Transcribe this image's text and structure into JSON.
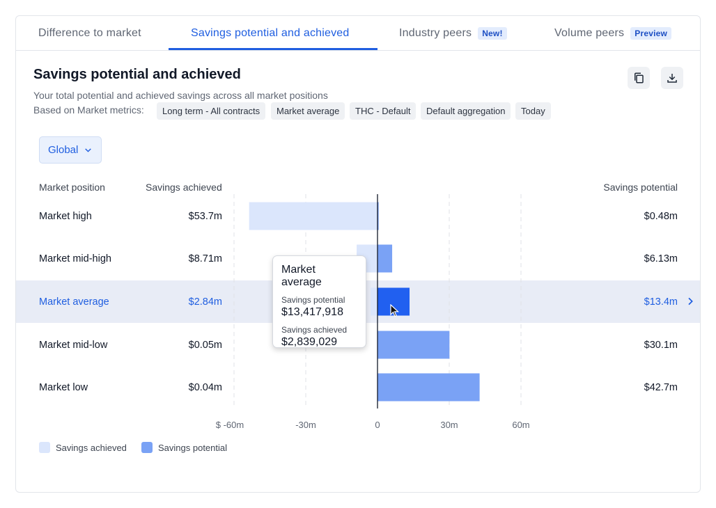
{
  "tabs": [
    {
      "label": "Difference to market",
      "badge": ""
    },
    {
      "label": "Savings potential and achieved",
      "badge": ""
    },
    {
      "label": "Industry peers",
      "badge": "New!"
    },
    {
      "label": "Volume peers",
      "badge": "Preview"
    }
  ],
  "active_tab": 1,
  "header": {
    "title": "Savings potential and achieved",
    "subtitle": "Your total potential and achieved savings across all market positions",
    "based_on_label": "Based on Market metrics:",
    "chips": [
      "Long term - All contracts",
      "Market average",
      "THC - Default",
      "Default aggregation",
      "Today"
    ]
  },
  "icons": {
    "copy": "copy-icon",
    "download": "download-icon",
    "dropdown": "chevron-down-icon",
    "row_arrow": "chevron-right-icon"
  },
  "filter": {
    "selected": "Global"
  },
  "columns": {
    "position": "Market position",
    "achieved": "Savings achieved",
    "potential": "Savings potential"
  },
  "rows": [
    {
      "label": "Market high",
      "achieved_text": "$53.7m",
      "potential_text": "$0.48m"
    },
    {
      "label": "Market mid-high",
      "achieved_text": "$8.71m",
      "potential_text": "$6.13m"
    },
    {
      "label": "Market average",
      "achieved_text": "$2.84m",
      "potential_text": "$13.4m"
    },
    {
      "label": "Market mid-low",
      "achieved_text": "$0.05m",
      "potential_text": "$30.1m"
    },
    {
      "label": "Market low",
      "achieved_text": "$0.04m",
      "potential_text": "$42.7m"
    }
  ],
  "highlighted_row": 2,
  "tooltip": {
    "title": "Market average",
    "potential_label": "Savings potential",
    "potential_value": "$13,417,918",
    "achieved_label": "Savings achieved",
    "achieved_value": "$2,839,029"
  },
  "legend": [
    {
      "label": "Savings achieved",
      "color": "#dbe6fc"
    },
    {
      "label": "Savings potential",
      "color": "#7aa2f5"
    }
  ],
  "colors": {
    "accent": "#1f5ee0",
    "achieved": "#dbe6fc",
    "potential": "#7aa2f5",
    "active_bar": "#2160f0"
  },
  "chart_data": {
    "type": "bar",
    "orientation": "horizontal",
    "categories": [
      "Market high",
      "Market mid-high",
      "Market average",
      "Market mid-low",
      "Market low"
    ],
    "series": [
      {
        "name": "Savings achieved",
        "values": [
          -53.7,
          -8.71,
          -2.84,
          -0.05,
          -0.04
        ]
      },
      {
        "name": "Savings potential",
        "values": [
          0.48,
          6.13,
          13.4,
          30.1,
          42.7
        ]
      }
    ],
    "xlim": [
      -60,
      60
    ],
    "x_ticks": [
      -60,
      -30,
      0,
      30,
      60
    ],
    "x_tick_labels": [
      "$ -60m",
      "-30m",
      "0",
      "30m",
      "60m"
    ],
    "unit": "millions USD",
    "grid": true,
    "legend_position": "bottom-left"
  }
}
